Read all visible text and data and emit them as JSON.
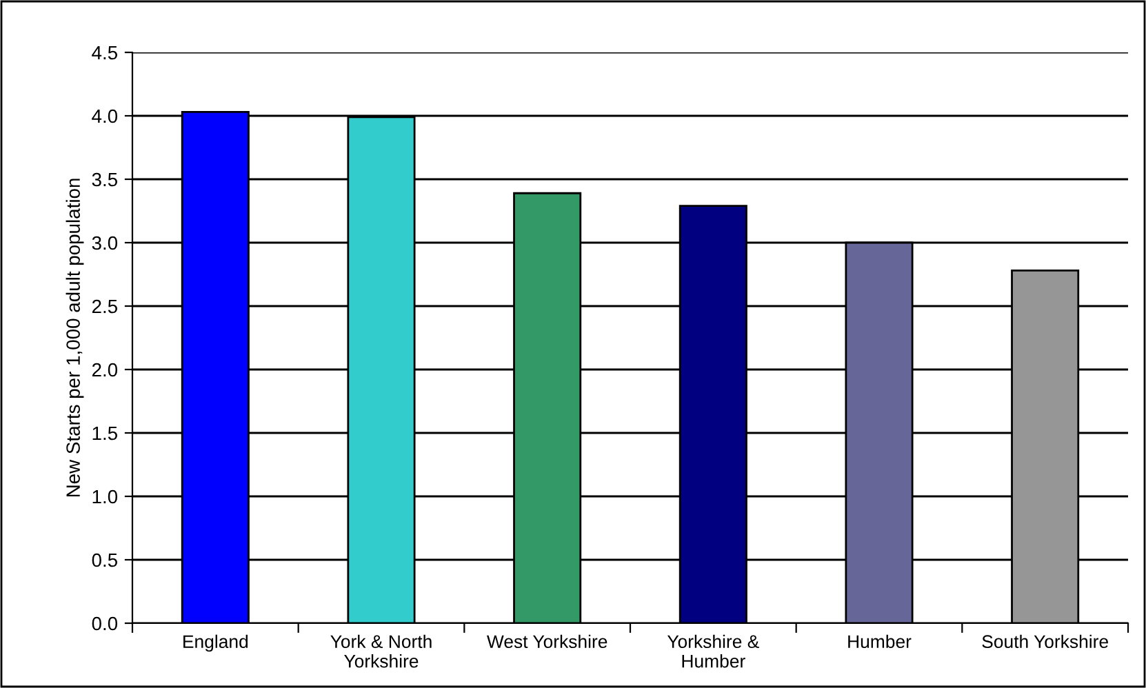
{
  "chart_data": {
    "type": "bar",
    "ylabel": "New Starts per 1,000 adult population",
    "categories": [
      "England",
      "York & North\nYorkshire",
      "West Yorkshire",
      "Yorkshire &\nHumber",
      "Humber",
      "South Yorkshire"
    ],
    "values": [
      4.03,
      3.99,
      3.39,
      3.29,
      3.0,
      2.78
    ],
    "colors": [
      "#0000ff",
      "#33cccc",
      "#339966",
      "#000080",
      "#666699",
      "#969696"
    ],
    "ylim": [
      0,
      4.5
    ],
    "yticks": [
      {
        "value": 0,
        "label": "0.0"
      },
      0.5,
      {
        "value": 1,
        "label": "1.0"
      },
      1.5,
      {
        "value": 2,
        "label": "2.0"
      },
      2.5,
      {
        "value": 3,
        "label": "3.0"
      },
      3.5,
      {
        "value": 4,
        "label": "4.0"
      },
      4.5
    ],
    "grid": "y",
    "legend": false
  }
}
